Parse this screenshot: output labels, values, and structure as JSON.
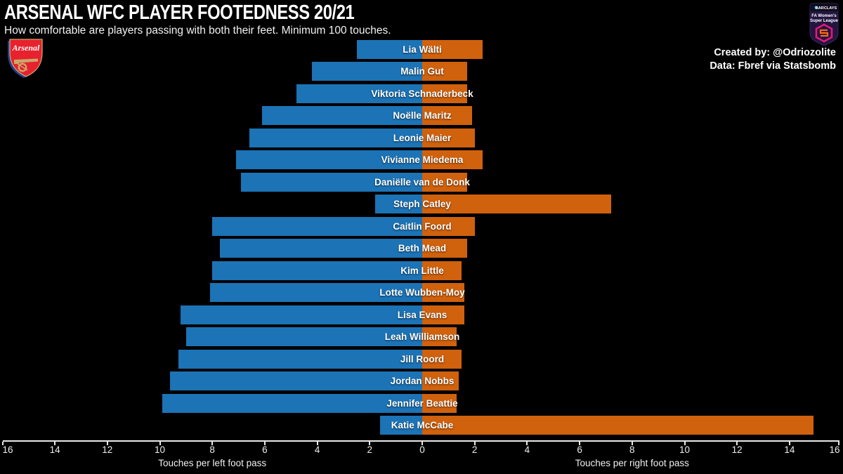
{
  "header": {
    "title": "ARSENAL WFC PLAYER FOOTEDNESS 20/21",
    "subtitle": "How comfortable are players passing with both their feet. Minimum 100 touches."
  },
  "credits": {
    "line1": "Created by: @Odriozolite",
    "line2": "Data: Fbref via Statsbomb"
  },
  "badges": {
    "arsenal": {
      "name": "Arsenal",
      "shield_red": "#e8212e",
      "trim_gold": "#c8a96a",
      "shadow_blue": "#1e3f8f"
    },
    "wsl": {
      "sponsor": "BARCLAYS",
      "league_line1": "FA Women's",
      "league_line2": "Super League",
      "shield_purple": "#221540",
      "band_dark": "#120d1f",
      "logo_pink": "#e6177d",
      "logo_orange": "#ff6a13",
      "barclays_teal": "#00aeef"
    }
  },
  "chart_data": {
    "type": "bar",
    "variant": "diverging-horizontal",
    "title": "ARSENAL WFC PLAYER FOOTEDNESS 20/21",
    "subtitle": "How comfortable are players passing with both their feet. Minimum 100 touches.",
    "background": "#000000",
    "grid": false,
    "legend": "none",
    "categories": [
      "Lia Wälti",
      "Malin Gut",
      "Viktoria Schnaderbeck",
      "Noëlle Maritz",
      "Leonie Maier",
      "Vivianne Miedema",
      "Daniëlle van de Donk",
      "Steph Catley",
      "Caitlin Foord",
      "Beth Mead",
      "Kim Little",
      "Lotte Wubben-Moy",
      "Lisa Evans",
      "Leah Williamson",
      "Jill Roord",
      "Jordan Nobbs",
      "Jennifer Beattie",
      "Katie McCabe"
    ],
    "series": [
      {
        "name": "Touches per left foot pass",
        "direction": "left",
        "color": "#1c73b5",
        "values": [
          2.5,
          4.2,
          4.8,
          6.1,
          6.6,
          7.1,
          6.9,
          1.8,
          8.0,
          7.7,
          8.0,
          8.1,
          9.2,
          9.0,
          9.3,
          9.6,
          9.9,
          1.6
        ]
      },
      {
        "name": "Touches per right foot pass",
        "direction": "right",
        "color": "#d0610d",
        "values": [
          2.3,
          1.7,
          1.7,
          1.9,
          2.0,
          2.3,
          1.7,
          7.2,
          2.0,
          1.7,
          1.5,
          1.6,
          1.6,
          1.3,
          1.5,
          1.4,
          1.3,
          14.9
        ]
      }
    ],
    "xlabel_left": "Touches per left foot pass",
    "xlabel_right": "Touches per right foot pass",
    "axis": {
      "xlim": [
        -16,
        16
      ],
      "tick_step": 2,
      "tick_labels_abs": [
        16,
        14,
        12,
        10,
        8,
        6,
        4,
        2,
        0,
        2,
        4,
        6,
        8,
        10,
        12,
        14,
        16
      ],
      "color": "#e9e9e9"
    }
  }
}
